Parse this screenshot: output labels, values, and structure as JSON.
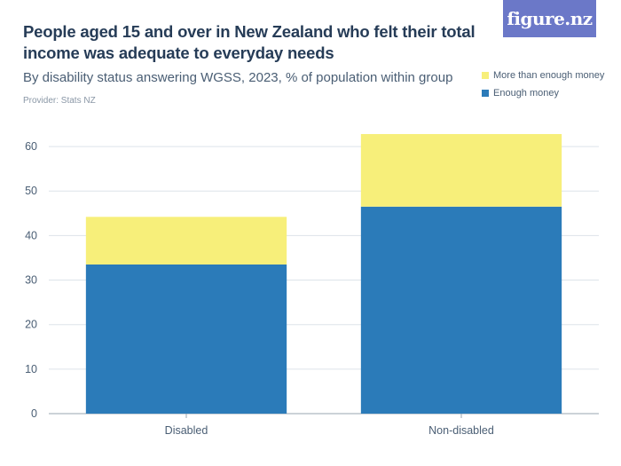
{
  "header": {
    "title": "People aged 15 and over in New Zealand who felt their total income was adequate to everyday needs",
    "subtitle": "By disability status answering WGSS, 2023, % of population within group",
    "provider": "Provider: Stats NZ",
    "logo": "figure.nz"
  },
  "chart_data": {
    "type": "bar",
    "stacked": true,
    "categories": [
      "Disabled",
      "Non-disabled"
    ],
    "series": [
      {
        "name": "Enough money",
        "values": [
          33.5,
          46.5
        ],
        "color": "#2b7bb9"
      },
      {
        "name": "More than enough money",
        "values": [
          10.7,
          16.3
        ],
        "color": "#f7ef7a"
      }
    ],
    "ylim": [
      0,
      65
    ],
    "yticks": [
      0,
      10,
      20,
      30,
      40,
      50,
      60
    ],
    "grid": true,
    "legend_placement": "top-right"
  }
}
